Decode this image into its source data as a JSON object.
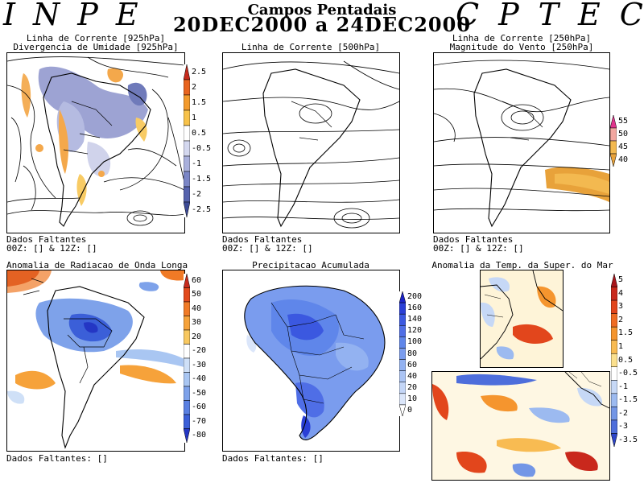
{
  "header": {
    "left_logo": "INPE",
    "right_logo": "CPTEC",
    "title": "Campos Pentadais",
    "period": "20DEC2000 a 24DEC2000"
  },
  "panels": {
    "p1": {
      "title1": "Linha de Corrente [925hPa]",
      "title2": "Divergencia de Umidade [925hPa]",
      "missing": "Dados Faltantes",
      "missing_hours": "00Z: [] & 12Z: []",
      "colorbar": [
        "2.5",
        "2",
        "1.5",
        "1",
        "0.5",
        "-0.5",
        "-1",
        "-1.5",
        "-2",
        "-2.5"
      ],
      "colors": [
        "#c62a1c",
        "#e8641e",
        "#f39a2c",
        "#f7c24a",
        "#ffffff",
        "#d4d8ef",
        "#a9b0dc",
        "#7b86c6",
        "#5663ae",
        "#3c4a96"
      ]
    },
    "p2": {
      "title1": "Linha de Corrente [500hPa]",
      "missing": "Dados Faltantes",
      "missing_hours": "00Z: [] & 12Z: []"
    },
    "p3": {
      "title1": "Linha de Corrente [250hPa]",
      "title2": "Magnitude do Vento [250hPa]",
      "missing": "Dados Faltantes",
      "missing_hours": "00Z: [] & 12Z: []",
      "colorbar": [
        "55",
        "50",
        "45",
        "40"
      ],
      "colors": [
        "#e0338c",
        "#f2a7a0",
        "#f3b950",
        "#e8a23a"
      ]
    },
    "p4": {
      "title1": "Anomalia de Radiacao de Onda Longa",
      "missing": "Dados Faltantes: []",
      "colorbar": [
        "60",
        "50",
        "40",
        "30",
        "20",
        "-20",
        "-30",
        "-40",
        "-50",
        "-60",
        "-70",
        "-80"
      ],
      "colors": [
        "#c62a1c",
        "#e24a1c",
        "#f07a26",
        "#f6a23a",
        "#f8c860",
        "#ffffff",
        "#cfe0f7",
        "#a9c6f2",
        "#7ea2ea",
        "#5a80e2",
        "#3b5fd8",
        "#2436c4"
      ]
    },
    "p5": {
      "title1": "Precipitacao Acumulada",
      "missing": "Dados Faltantes: []",
      "colorbar": [
        "200",
        "160",
        "140",
        "120",
        "100",
        "80",
        "60",
        "40",
        "20",
        "10",
        "0"
      ],
      "colors": [
        "#1c24c8",
        "#2a3fd6",
        "#3b58e0",
        "#4f6ee6",
        "#5f86ea",
        "#7a9cee",
        "#93b2f1",
        "#abc4f4",
        "#c4d6f7",
        "#dbe6fa",
        "#ffffff"
      ]
    },
    "p6": {
      "title1": "Anomalia da Temp. da Super. do Mar",
      "colorbar": [
        "5",
        "4",
        "3",
        "2",
        "1.5",
        "1",
        "0.5",
        "-0.5",
        "-1",
        "-1.5",
        "-2",
        "-3",
        "-3.5"
      ],
      "colors": [
        "#a8141a",
        "#c9281c",
        "#e2461c",
        "#ef6c22",
        "#f5952e",
        "#f8bb52",
        "#fbe08e",
        "#ffffff",
        "#c6d8f6",
        "#9cbaf0",
        "#7396e6",
        "#4e6edb",
        "#2c44c8"
      ]
    }
  }
}
